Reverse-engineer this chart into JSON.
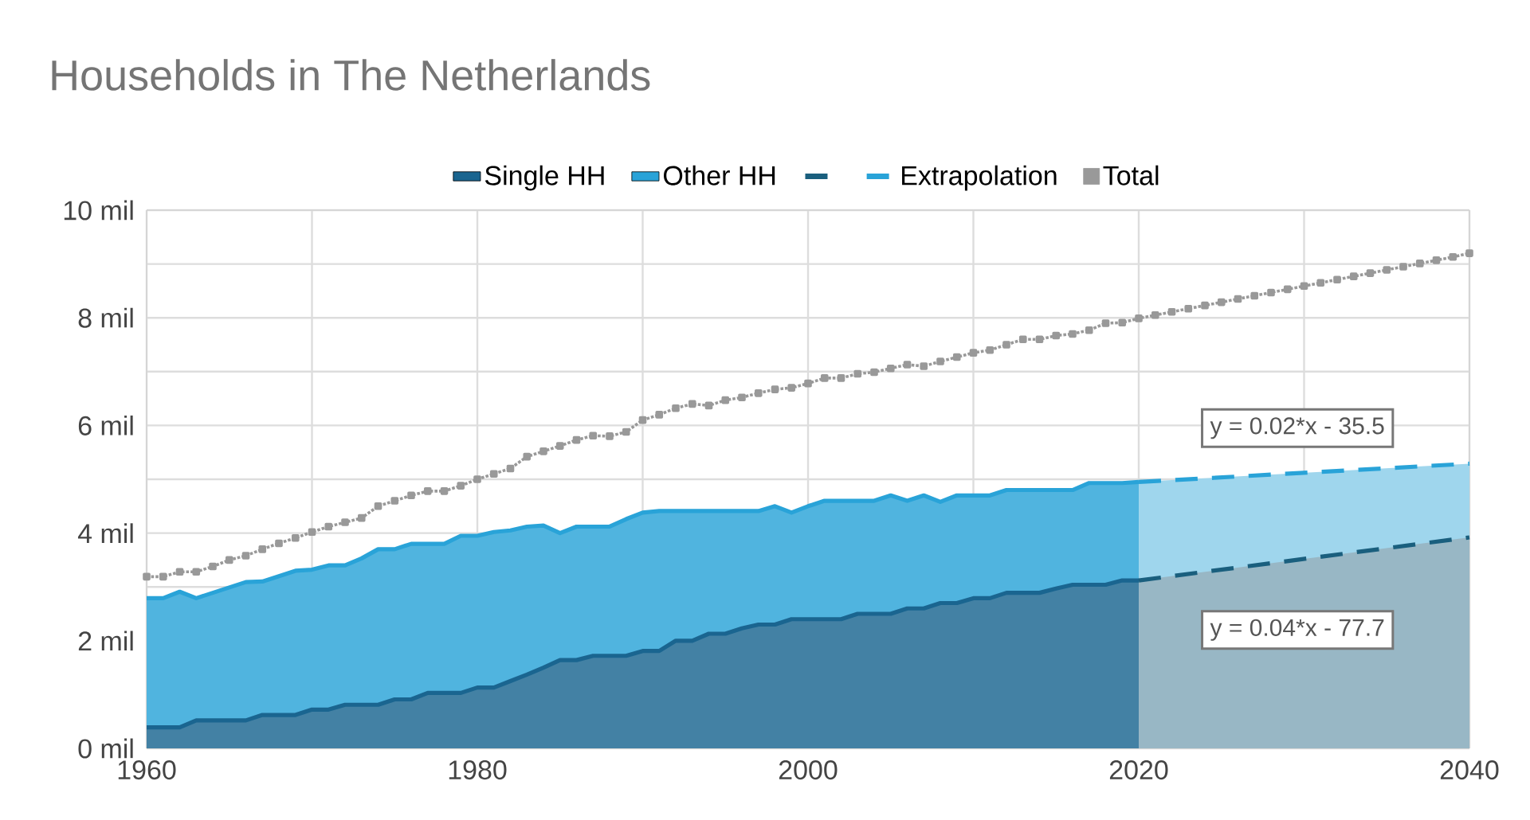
{
  "chart_data": {
    "type": "area",
    "title": "Households in The Netherlands",
    "xlim": [
      1960,
      2040
    ],
    "xticks": [
      1960,
      {
        "value": 1970,
        "label": null
      },
      1980,
      {
        "value": 1990,
        "label": null
      },
      2000,
      {
        "value": 2010,
        "label": null
      },
      2020,
      {
        "value": 2030,
        "label": null
      },
      2040
    ],
    "ylim": [
      0,
      10
    ],
    "yticks": [
      {
        "value": 0,
        "label": "0 mil"
      },
      {
        "value": 1,
        "label": null
      },
      {
        "value": 2,
        "label": "2 mil"
      },
      {
        "value": 3,
        "label": null
      },
      {
        "value": 4,
        "label": "4 mil"
      },
      {
        "value": 5,
        "label": null
      },
      {
        "value": 6,
        "label": "6 mil"
      },
      {
        "value": 7,
        "label": null
      },
      {
        "value": 8,
        "label": "8 mil"
      },
      {
        "value": 9,
        "label": null
      },
      {
        "value": 10,
        "label": "10 mil"
      }
    ],
    "grid": true,
    "legend": "top",
    "series": [
      {
        "name": "Single HH",
        "color": "#1a6590",
        "x": [
          1960,
          1961,
          1962,
          1963,
          1964,
          1965,
          1966,
          1967,
          1968,
          1969,
          1970,
          1971,
          1972,
          1973,
          1974,
          1975,
          1976,
          1977,
          1978,
          1979,
          1980,
          1981,
          1982,
          1983,
          1984,
          1985,
          1986,
          1987,
          1988,
          1989,
          1990,
          1991,
          1992,
          1993,
          1994,
          1995,
          1996,
          1997,
          1998,
          1999,
          2000,
          2001,
          2002,
          2003,
          2004,
          2005,
          2006,
          2007,
          2008,
          2009,
          2010,
          2011,
          2012,
          2013,
          2014,
          2015,
          2016,
          2017,
          2018,
          2019,
          2020
        ],
        "values": [
          0.39,
          0.39,
          0.39,
          0.52,
          0.52,
          0.52,
          0.52,
          0.62,
          0.62,
          0.62,
          0.72,
          0.72,
          0.81,
          0.81,
          0.81,
          0.91,
          0.91,
          1.03,
          1.03,
          1.03,
          1.13,
          1.13,
          1.25,
          1.37,
          1.5,
          1.64,
          1.64,
          1.72,
          1.72,
          1.72,
          1.81,
          1.81,
          2.0,
          2.0,
          2.13,
          2.13,
          2.23,
          2.3,
          2.3,
          2.4,
          2.4,
          2.4,
          2.4,
          2.5,
          2.5,
          2.5,
          2.6,
          2.6,
          2.7,
          2.7,
          2.79,
          2.79,
          2.89,
          2.89,
          2.89,
          2.97,
          3.04,
          3.04,
          3.04,
          3.12,
          3.12
        ]
      },
      {
        "name": "Other HH",
        "color": "#29a3d8",
        "x": [
          1960,
          1961,
          1962,
          1963,
          1964,
          1965,
          1966,
          1967,
          1968,
          1969,
          1970,
          1971,
          1972,
          1973,
          1974,
          1975,
          1976,
          1977,
          1978,
          1979,
          1980,
          1981,
          1982,
          1983,
          1984,
          1985,
          1986,
          1987,
          1988,
          1989,
          1990,
          1991,
          1992,
          1993,
          1994,
          1995,
          1996,
          1997,
          1998,
          1999,
          2000,
          2001,
          2002,
          2003,
          2004,
          2005,
          2006,
          2007,
          2008,
          2009,
          2010,
          2011,
          2012,
          2013,
          2014,
          2015,
          2016,
          2017,
          2018,
          2019,
          2020
        ],
        "values": [
          2.79,
          2.79,
          2.91,
          2.79,
          2.89,
          2.99,
          3.09,
          3.1,
          3.2,
          3.3,
          3.32,
          3.4,
          3.4,
          3.53,
          3.7,
          3.7,
          3.8,
          3.8,
          3.8,
          3.95,
          3.95,
          4.02,
          4.05,
          4.12,
          4.14,
          4.0,
          4.12,
          4.12,
          4.12,
          4.26,
          4.38,
          4.41,
          4.41,
          4.41,
          4.41,
          4.41,
          4.41,
          4.41,
          4.5,
          4.38,
          4.5,
          4.6,
          4.6,
          4.6,
          4.6,
          4.7,
          4.6,
          4.7,
          4.58,
          4.7,
          4.7,
          4.7,
          4.8,
          4.8,
          4.8,
          4.8,
          4.8,
          4.93,
          4.93,
          4.93,
          4.95
        ]
      },
      {
        "color": "#1a5f7e",
        "line_style": "dashed",
        "x": [
          2020,
          2040
        ],
        "values": [
          3.12,
          3.92
        ]
      },
      {
        "name": "Extrapolation",
        "color": "#29a3d8",
        "line_style": "dashed",
        "x": [
          2020,
          2040
        ],
        "values": [
          4.95,
          5.29
        ]
      },
      {
        "name": "Total",
        "type": "line",
        "color": "#999999",
        "marker": "square",
        "line_style": "dotted",
        "x": [
          1960,
          1961,
          1962,
          1963,
          1964,
          1965,
          1966,
          1967,
          1968,
          1969,
          1970,
          1971,
          1972,
          1973,
          1974,
          1975,
          1976,
          1977,
          1978,
          1979,
          1980,
          1981,
          1982,
          1983,
          1984,
          1985,
          1986,
          1987,
          1988,
          1989,
          1990,
          1991,
          1992,
          1993,
          1994,
          1995,
          1996,
          1997,
          1998,
          1999,
          2000,
          2001,
          2002,
          2003,
          2004,
          2005,
          2006,
          2007,
          2008,
          2009,
          2010,
          2011,
          2012,
          2013,
          2014,
          2015,
          2016,
          2017,
          2018,
          2019,
          2020,
          2021,
          2022,
          2023,
          2024,
          2025,
          2026,
          2027,
          2028,
          2029,
          2030,
          2031,
          2032,
          2033,
          2034,
          2035,
          2036,
          2037,
          2038,
          2039,
          2040
        ],
        "values": [
          3.19,
          3.19,
          3.28,
          3.28,
          3.38,
          3.5,
          3.58,
          3.7,
          3.81,
          3.91,
          4.02,
          4.12,
          4.2,
          4.28,
          4.5,
          4.6,
          4.7,
          4.78,
          4.78,
          4.88,
          5.0,
          5.1,
          5.2,
          5.42,
          5.52,
          5.62,
          5.73,
          5.81,
          5.8,
          5.88,
          6.1,
          6.2,
          6.32,
          6.4,
          6.37,
          6.47,
          6.52,
          6.6,
          6.67,
          6.7,
          6.78,
          6.88,
          6.88,
          6.96,
          6.99,
          7.06,
          7.13,
          7.1,
          7.19,
          7.27,
          7.35,
          7.4,
          7.5,
          7.6,
          7.6,
          7.67,
          7.7,
          7.77,
          7.9,
          7.91,
          7.99,
          8.05,
          8.11,
          8.17,
          8.23,
          8.29,
          8.35,
          8.41,
          8.47,
          8.53,
          8.59,
          8.65,
          8.71,
          8.77,
          8.83,
          8.89,
          8.95,
          9.01,
          9.07,
          9.13,
          9.2
        ]
      }
    ],
    "annotations": [
      "y = 0.02*x - 35.5",
      "y = 0.04*x - 77.7"
    ]
  }
}
